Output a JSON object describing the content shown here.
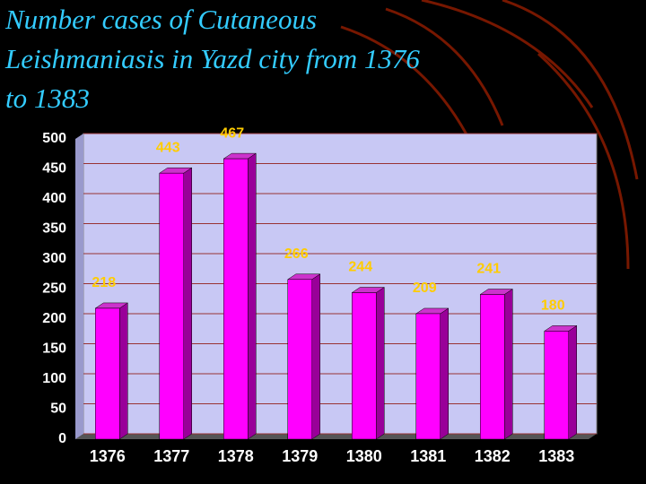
{
  "chart_data": {
    "type": "bar",
    "title": "Number cases of Cutaneous Leishmaniasis in Yazd city from 1376 to 1383",
    "categories": [
      "1376",
      "1377",
      "1378",
      "1379",
      "1380",
      "1381",
      "1382",
      "1383"
    ],
    "values": [
      218,
      443,
      467,
      266,
      244,
      209,
      241,
      180
    ],
    "color": "#ff00ff",
    "ylim": [
      0,
      500
    ],
    "yticks": [
      0,
      50,
      100,
      150,
      200,
      250,
      300,
      350,
      400,
      450,
      500
    ],
    "grid": true
  }
}
